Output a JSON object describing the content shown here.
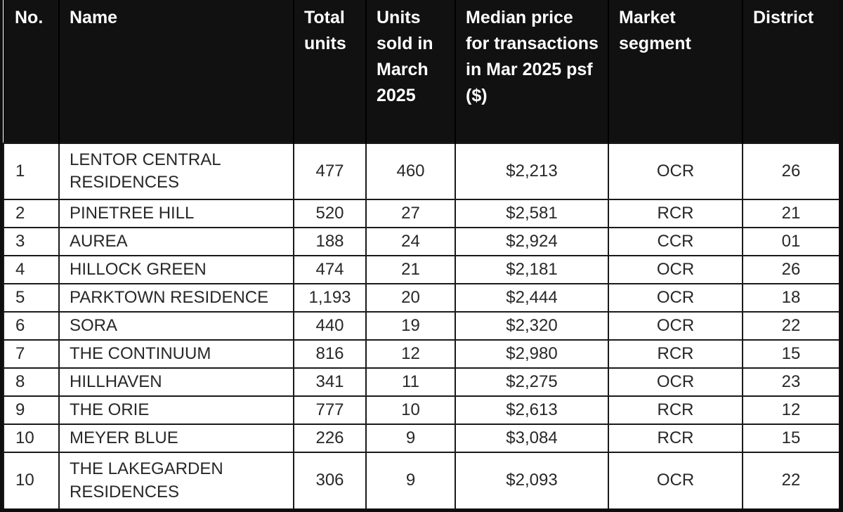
{
  "table": {
    "name": "new-launch-condo-sales-march-2025",
    "columns": [
      {
        "key": "no",
        "label": "No."
      },
      {
        "key": "name",
        "label": "Name"
      },
      {
        "key": "total_units",
        "label": "Total\nunits"
      },
      {
        "key": "units_sold",
        "label": "Units\nsold in\nMarch\n2025"
      },
      {
        "key": "median_price",
        "label": "Median price\nfor transactions\nin Mar 2025 psf\n($)"
      },
      {
        "key": "market_segment",
        "label": "Market\nsegment"
      },
      {
        "key": "district",
        "label": "District"
      }
    ],
    "rows": [
      {
        "no": "1",
        "name": "LENTOR CENTRAL RESIDENCES",
        "total_units": "477",
        "units_sold": "460",
        "median_price": "$2,213",
        "market_segment": "OCR",
        "district": "26"
      },
      {
        "no": "2",
        "name": "PINETREE HILL",
        "total_units": "520",
        "units_sold": "27",
        "median_price": "$2,581",
        "market_segment": "RCR",
        "district": "21"
      },
      {
        "no": "3",
        "name": "AUREA",
        "total_units": "188",
        "units_sold": "24",
        "median_price": "$2,924",
        "market_segment": "CCR",
        "district": "01"
      },
      {
        "no": "4",
        "name": "HILLOCK GREEN",
        "total_units": "474",
        "units_sold": "21",
        "median_price": "$2,181",
        "market_segment": "OCR",
        "district": "26"
      },
      {
        "no": "5",
        "name": "PARKTOWN RESIDENCE",
        "total_units": "1,193",
        "units_sold": "20",
        "median_price": "$2,444",
        "market_segment": "OCR",
        "district": "18"
      },
      {
        "no": "6",
        "name": "SORA",
        "total_units": "440",
        "units_sold": "19",
        "median_price": "$2,320",
        "market_segment": "OCR",
        "district": "22"
      },
      {
        "no": "7",
        "name": "THE CONTINUUM",
        "total_units": "816",
        "units_sold": "12",
        "median_price": "$2,980",
        "market_segment": "RCR",
        "district": "15"
      },
      {
        "no": "8",
        "name": "HILLHAVEN",
        "total_units": "341",
        "units_sold": "11",
        "median_price": "$2,275",
        "market_segment": "OCR",
        "district": "23"
      },
      {
        "no": "9",
        "name": "THE ORIE",
        "total_units": "777",
        "units_sold": "10",
        "median_price": "$2,613",
        "market_segment": "RCR",
        "district": "12"
      },
      {
        "no": "10",
        "name": "MEYER BLUE",
        "total_units": "226",
        "units_sold": "9",
        "median_price": "$3,084",
        "market_segment": "RCR",
        "district": "15"
      },
      {
        "no": "10",
        "name": "THE LAKEGARDEN RESIDENCES",
        "total_units": "306",
        "units_sold": "9",
        "median_price": "$2,093",
        "market_segment": "OCR",
        "district": "22"
      }
    ]
  },
  "colors": {
    "header_bg": "#111111",
    "header_text": "#ffffff",
    "body_bg": "#ffffff",
    "body_text": "#282828",
    "border": "#1a1a1a",
    "outer_border": "#0e0e0e"
  }
}
